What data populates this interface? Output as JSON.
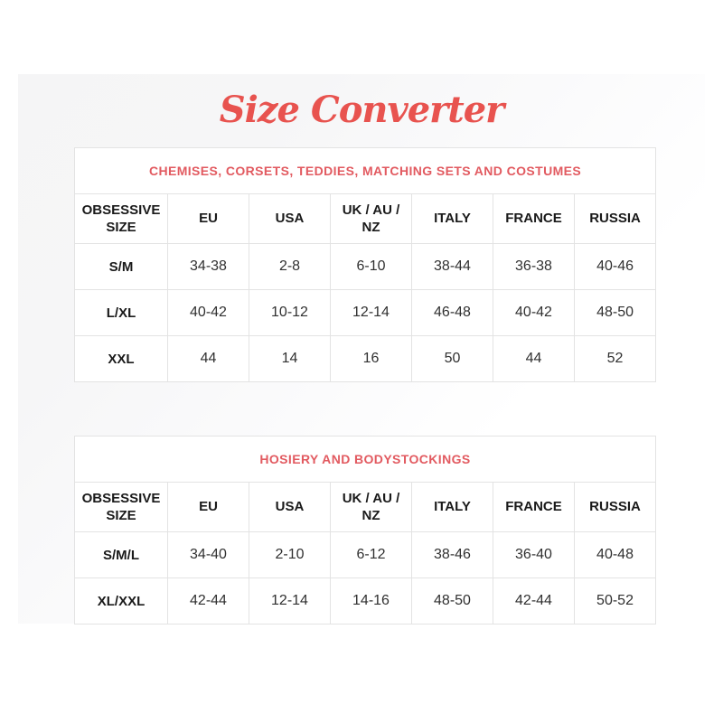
{
  "page": {
    "title": "Size Converter",
    "colors": {
      "title": "#e8534f",
      "caption": "#e25a60",
      "header_text": "#1a1a1a",
      "cell_text": "#303030",
      "table_border": "#e3e3e3",
      "panel_tint": "#f5f5f6",
      "background": "#ffffff"
    }
  },
  "columns": [
    "OBSESSIVE SIZE",
    "EU",
    "USA",
    "UK / AU / NZ",
    "ITALY",
    "FRANCE",
    "RUSSIA"
  ],
  "tables": [
    {
      "caption": "CHEMISES, CORSETS, TEDDIES, MATCHING SETS AND COSTUMES",
      "rows": [
        [
          "S/M",
          "34-38",
          "2-8",
          "6-10",
          "38-44",
          "36-38",
          "40-46"
        ],
        [
          "L/XL",
          "40-42",
          "10-12",
          "12-14",
          "46-48",
          "40-42",
          "48-50"
        ],
        [
          "XXL",
          "44",
          "14",
          "16",
          "50",
          "44",
          "52"
        ]
      ]
    },
    {
      "caption": "HOSIERY AND BODYSTOCKINGS",
      "rows": [
        [
          "S/M/L",
          "34-40",
          "2-10",
          "6-12",
          "38-46",
          "36-40",
          "40-48"
        ],
        [
          "XL/XXL",
          "42-44",
          "12-14",
          "14-16",
          "48-50",
          "42-44",
          "50-52"
        ]
      ]
    }
  ]
}
